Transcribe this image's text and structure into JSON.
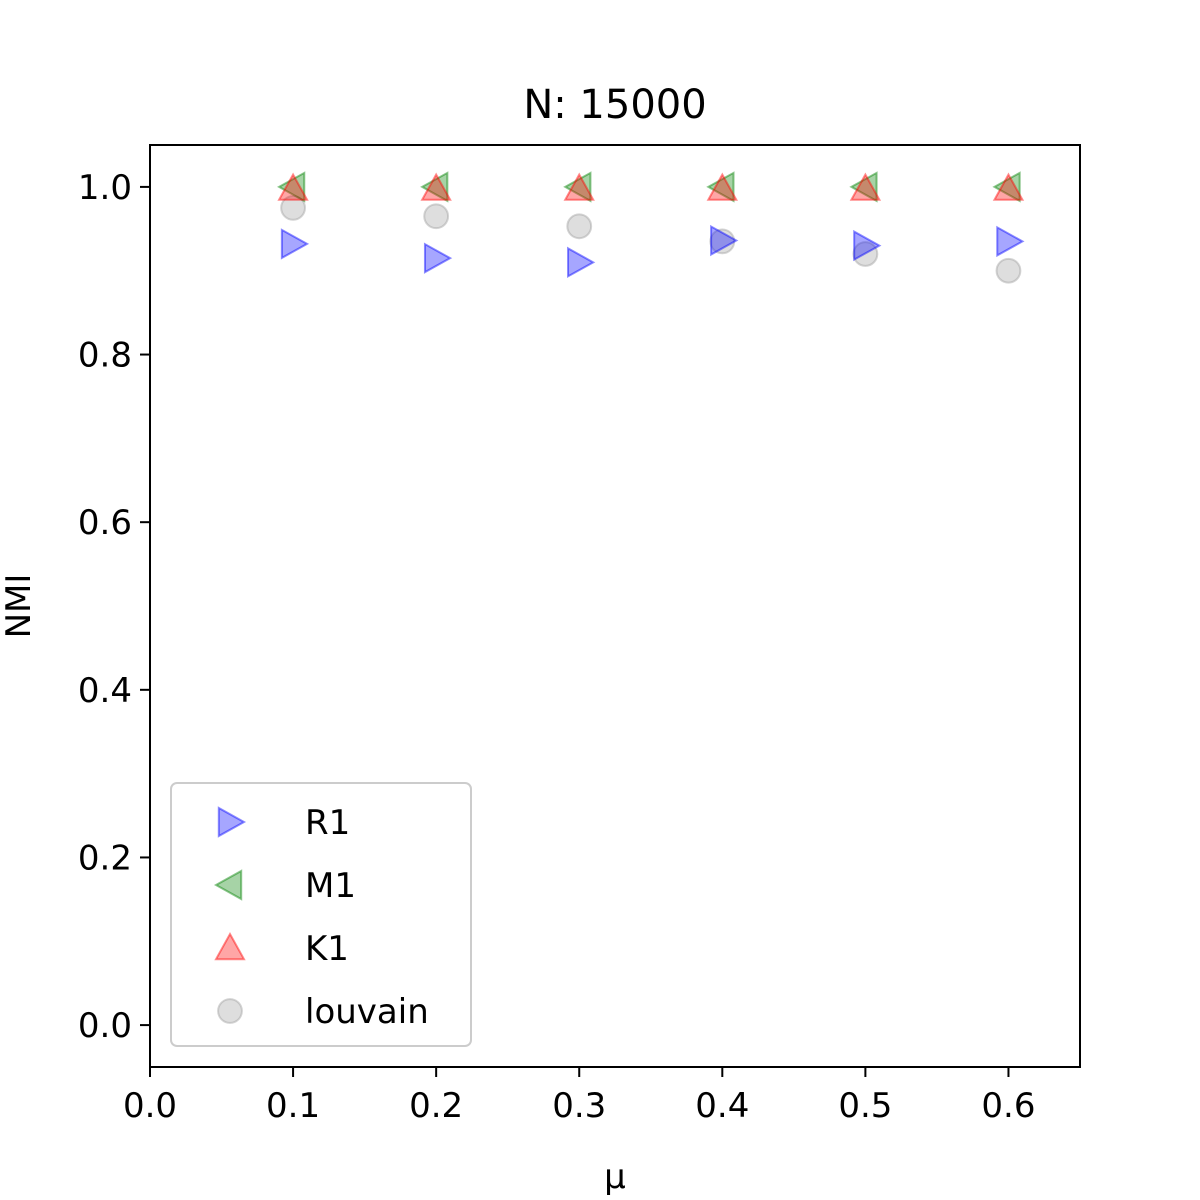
{
  "chart_data": {
    "type": "scatter",
    "title": "N: 15000",
    "xlabel": "μ",
    "ylabel": "NMI",
    "xlim": [
      0.0,
      0.65
    ],
    "ylim": [
      -0.05,
      1.05
    ],
    "xticks": [
      "0.0",
      "0.1",
      "0.2",
      "0.3",
      "0.4",
      "0.5",
      "0.6"
    ],
    "yticks": [
      "0.0",
      "0.2",
      "0.4",
      "0.6",
      "0.8",
      "1.0"
    ],
    "grid": false,
    "legend_position": "lower-left",
    "series": [
      {
        "name": "R1",
        "marker": "triangle-right",
        "color": "#0000ff",
        "points": [
          {
            "x": 0.1,
            "y": 0.932
          },
          {
            "x": 0.2,
            "y": 0.915
          },
          {
            "x": 0.3,
            "y": 0.91
          },
          {
            "x": 0.4,
            "y": 0.936
          },
          {
            "x": 0.5,
            "y": 0.93
          },
          {
            "x": 0.6,
            "y": 0.935
          }
        ]
      },
      {
        "name": "M1",
        "marker": "triangle-left",
        "color": "#008000",
        "points": [
          {
            "x": 0.1,
            "y": 1.0
          },
          {
            "x": 0.2,
            "y": 1.0
          },
          {
            "x": 0.3,
            "y": 1.0
          },
          {
            "x": 0.4,
            "y": 1.0
          },
          {
            "x": 0.5,
            "y": 1.0
          },
          {
            "x": 0.6,
            "y": 1.0
          }
        ]
      },
      {
        "name": "K1",
        "marker": "triangle-up",
        "color": "#ff0000",
        "points": [
          {
            "x": 0.1,
            "y": 0.998
          },
          {
            "x": 0.2,
            "y": 0.998
          },
          {
            "x": 0.3,
            "y": 0.998
          },
          {
            "x": 0.4,
            "y": 0.998
          },
          {
            "x": 0.5,
            "y": 0.998
          },
          {
            "x": 0.6,
            "y": 0.998
          }
        ]
      },
      {
        "name": "louvain",
        "marker": "circle",
        "color": "#a0a0a0",
        "points": [
          {
            "x": 0.1,
            "y": 0.975
          },
          {
            "x": 0.2,
            "y": 0.965
          },
          {
            "x": 0.3,
            "y": 0.953
          },
          {
            "x": 0.4,
            "y": 0.935
          },
          {
            "x": 0.5,
            "y": 0.92
          },
          {
            "x": 0.6,
            "y": 0.9
          }
        ]
      }
    ]
  }
}
